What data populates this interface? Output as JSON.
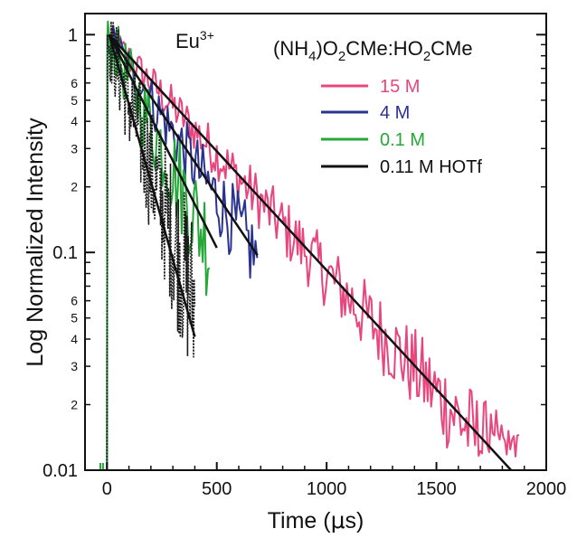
{
  "chart_data": {
    "type": "line",
    "xlabel_main": "Time (",
    "xlabel_mu": "μ",
    "xlabel_end": "s)",
    "ylabel": "Log Normalized Intensity",
    "ion_label": "Eu",
    "ion_charge": "3+",
    "medium_parts": [
      "(NH",
      "4",
      ")O",
      "2",
      "CMe:HO",
      "2",
      "CMe"
    ],
    "xlim": [
      -100,
      2000
    ],
    "ylim": [
      0.01,
      1.25
    ],
    "x_scale": "linear",
    "y_scale": "log",
    "x_ticks": [
      0,
      500,
      1000,
      1500,
      2000
    ],
    "x_tick_labels": [
      "0",
      "500",
      "1000",
      "1500",
      "2000"
    ],
    "y_major_ticks": [
      0.01,
      0.1,
      1
    ],
    "y_major_labels": [
      "0.01",
      "0.1",
      "1"
    ],
    "y_minor_labeled": [
      {
        "value": 0.02,
        "label": "2"
      },
      {
        "value": 0.03,
        "label": "3"
      },
      {
        "value": 0.04,
        "label": "4"
      },
      {
        "value": 0.05,
        "label": "5"
      },
      {
        "value": 0.06,
        "label": "6"
      },
      {
        "value": 0.2,
        "label": "2"
      },
      {
        "value": 0.3,
        "label": "3"
      },
      {
        "value": 0.4,
        "label": "4"
      },
      {
        "value": 0.5,
        "label": "5"
      },
      {
        "value": 0.6,
        "label": "6"
      }
    ],
    "grid": false,
    "legend_position": "top-right",
    "series": [
      {
        "name": "15 M",
        "color": "#e8467c",
        "tau": 395,
        "t_end": 1880,
        "noise": 0.07,
        "floor": 0.0115,
        "fit": {
          "x0": 10,
          "y0": 1.0,
          "x1": 1840,
          "y1": 0.01
        }
      },
      {
        "name": "4 M",
        "color": "#2b3390",
        "tau": 290,
        "t_end": 690,
        "noise": 0.09,
        "floor": 0.06,
        "fit": {
          "x0": 10,
          "y0": 1.0,
          "x1": 685,
          "y1": 0.097
        }
      },
      {
        "name": "0.1 M",
        "color": "#25a838",
        "tau": 210,
        "t_end": 470,
        "noise": 0.13,
        "floor": 0.017,
        "fit": {
          "x0": 10,
          "y0": 1.0,
          "x1": 500,
          "y1": 0.105
        }
      },
      {
        "name": "0.11 M HOTf",
        "color": "#1a1a1a",
        "tau": 140,
        "t_end": 400,
        "noise": 0.17,
        "floor": 0.011,
        "dotted": true,
        "fit": {
          "x0": 10,
          "y0": 1.0,
          "x1": 400,
          "y1": 0.041
        }
      }
    ]
  }
}
